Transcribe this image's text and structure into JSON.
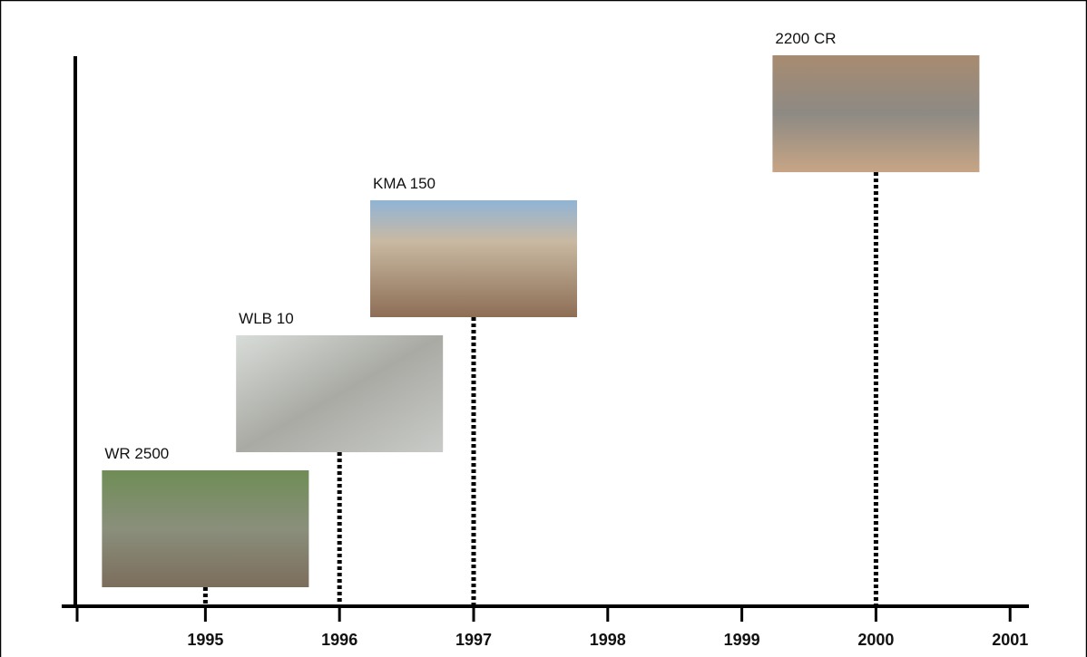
{
  "axis": {
    "ticks": [
      1995,
      1996,
      1997,
      1998,
      1999,
      2000,
      2001
    ],
    "range": [
      1994.03,
      2001.1
    ]
  },
  "items": [
    {
      "label": "WR 2500",
      "year": 1995
    },
    {
      "label": "WLB 10",
      "year": 1996
    },
    {
      "label": "KMA 150",
      "year": 1997
    },
    {
      "label": "2200 CR",
      "year": 2000
    }
  ]
}
